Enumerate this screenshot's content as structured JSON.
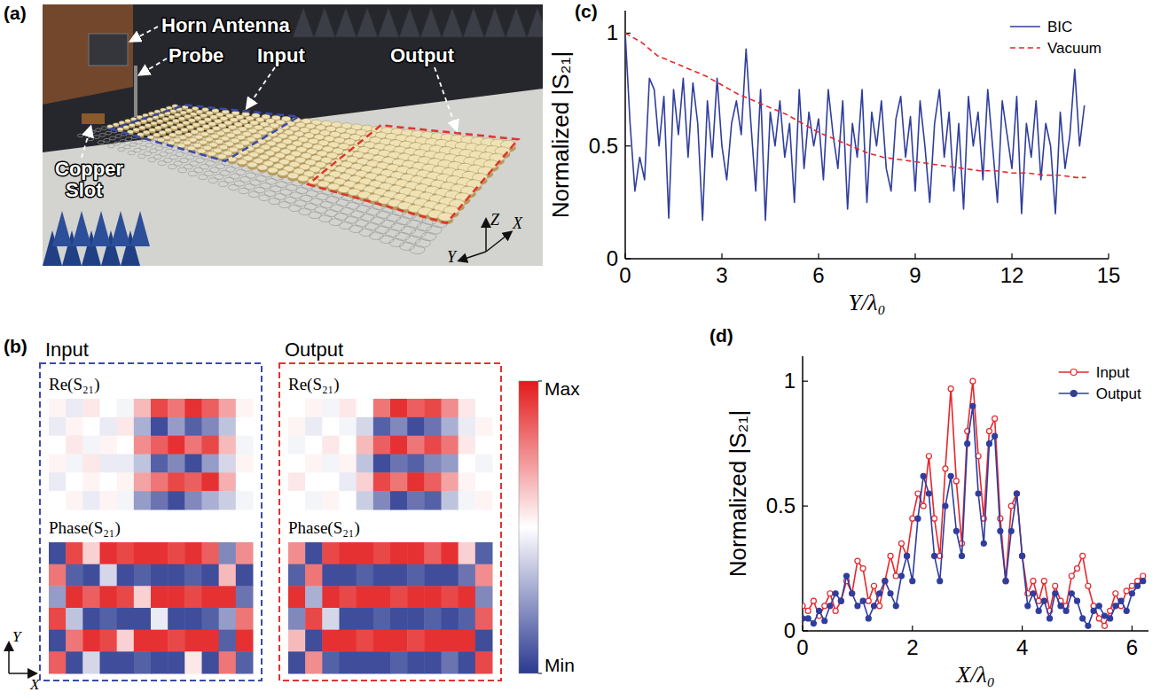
{
  "figure": {
    "panel_labels": [
      "(a)",
      "(b)",
      "(c)",
      "(d)"
    ],
    "photo": {
      "labels": {
        "horn_antenna": "Horn Antenna",
        "probe": "Probe",
        "input": "Input",
        "output": "Output",
        "copper_slot": "Copper Slot"
      },
      "axes": [
        "Z",
        "X",
        "Y"
      ]
    },
    "field_maps": {
      "row_labels": [
        "Re(S₂₁)",
        "Phase(S₂₁)"
      ],
      "axes": [
        "Y",
        "X"
      ],
      "colorbar": {
        "range": [
          -1,
          1
        ],
        "ticks": [
          {
            "value": 1,
            "label": "Max"
          },
          {
            "value": -1,
            "label": "Min"
          }
        ]
      },
      "panels": [
        {
          "title": "Input",
          "color": "#3b4ba6",
          "re": [
            [
              0.05,
              -0.1,
              0.1,
              0,
              -0.05,
              0.3,
              0.8,
              0.6,
              0.9,
              0.7,
              0.4,
              0.05
            ],
            [
              -0.1,
              0.05,
              0,
              -0.1,
              0.1,
              -0.4,
              -0.9,
              -0.5,
              -0.8,
              -0.6,
              -0.3,
              0
            ],
            [
              0,
              0.1,
              -0.05,
              0.05,
              0,
              0.5,
              0.7,
              0.9,
              0.6,
              0.8,
              0.3,
              -0.05
            ],
            [
              0.05,
              -0.05,
              0.1,
              -0.1,
              -0.1,
              -0.3,
              -0.8,
              -0.6,
              -0.9,
              -0.5,
              -0.2,
              0.05
            ],
            [
              -0.1,
              0,
              0.05,
              0,
              0.05,
              0.4,
              0.6,
              0.8,
              0.7,
              0.9,
              0.35,
              0
            ],
            [
              0,
              0.05,
              -0.1,
              0.05,
              -0.05,
              -0.5,
              -0.7,
              -0.9,
              -0.6,
              -0.4,
              -0.25,
              -0.05
            ]
          ],
          "phase": [
            [
              -0.9,
              0.8,
              0.2,
              0.9,
              0.8,
              0.9,
              0.9,
              0.8,
              0.9,
              0.7,
              -0.6,
              0.5
            ],
            [
              0.6,
              -0.8,
              -0.9,
              -0.2,
              -0.9,
              -0.8,
              -0.9,
              -0.9,
              -0.8,
              -0.9,
              0.3,
              -0.9
            ],
            [
              -0.5,
              0.9,
              0.7,
              0.9,
              0.8,
              0.2,
              0.9,
              0.9,
              0.8,
              0.9,
              0.9,
              -0.7
            ],
            [
              0.8,
              -0.3,
              -0.9,
              -0.8,
              -0.9,
              -0.9,
              -0.1,
              -0.9,
              -0.9,
              -0.8,
              -0.5,
              0.6
            ],
            [
              -0.9,
              0.6,
              0.9,
              0.8,
              0.2,
              0.9,
              0.9,
              0.8,
              0.9,
              0.9,
              -0.8,
              0.9
            ],
            [
              0.7,
              -0.9,
              -0.2,
              -0.9,
              -0.9,
              -0.8,
              -0.9,
              -0.9,
              0.1,
              -0.9,
              0.6,
              -0.8
            ]
          ]
        },
        {
          "title": "Output",
          "color": "#e0342f",
          "re": [
            [
              0,
              0.05,
              -0.05,
              0.1,
              0,
              0.6,
              0.9,
              0.7,
              0.8,
              0.5,
              0.1,
              0
            ],
            [
              0.05,
              -0.1,
              0,
              -0.05,
              -0.2,
              -0.8,
              -0.6,
              -0.9,
              -0.7,
              -0.4,
              -0.1,
              0.05
            ],
            [
              -0.05,
              0,
              0.1,
              0,
              0.3,
              0.7,
              0.9,
              0.6,
              0.8,
              0.6,
              0.1,
              0
            ],
            [
              0,
              0.05,
              -0.05,
              0.05,
              -0.3,
              -0.9,
              -0.7,
              -0.8,
              -0.6,
              -0.5,
              0,
              -0.05
            ],
            [
              0.1,
              0,
              0,
              -0.1,
              0.2,
              0.8,
              0.6,
              0.9,
              0.7,
              0.4,
              0.05,
              0
            ],
            [
              0,
              -0.05,
              0.05,
              0,
              -0.25,
              -0.6,
              -0.9,
              -0.7,
              -0.8,
              -0.3,
              -0.05,
              0.05
            ]
          ],
          "phase": [
            [
              0.5,
              -0.9,
              0.8,
              0.9,
              0.9,
              0.8,
              0.9,
              0.9,
              0.7,
              0.9,
              0.2,
              -0.8
            ],
            [
              -0.8,
              0.6,
              -0.9,
              -0.9,
              -0.8,
              -0.9,
              -0.9,
              -0.8,
              -0.9,
              -0.9,
              -0.7,
              0.5
            ],
            [
              0.9,
              -0.4,
              0.9,
              0.8,
              0.9,
              0.9,
              0.8,
              0.9,
              0.9,
              0.8,
              0.9,
              -0.6
            ],
            [
              -0.6,
              0.8,
              -0.2,
              -0.9,
              -0.9,
              -0.8,
              -0.9,
              -0.9,
              -0.8,
              -0.9,
              -0.8,
              0.7
            ],
            [
              0.3,
              -0.9,
              0.9,
              0.9,
              0.8,
              0.9,
              0.9,
              0.8,
              0.9,
              0.9,
              0.9,
              -0.9
            ],
            [
              -0.9,
              0.5,
              -0.8,
              -0.9,
              -0.9,
              -0.9,
              -0.8,
              -0.9,
              -0.9,
              -0.7,
              -0.9,
              0.8
            ]
          ]
        }
      ]
    }
  },
  "chart_data": [
    {
      "type": "line",
      "xlabel": "Y/λ₀",
      "ylabel": "Normalized |S₂₁|",
      "xlim": [
        0,
        15
      ],
      "xticks": [
        0,
        3,
        6,
        9,
        12,
        15
      ],
      "ylim": [
        0,
        1.1
      ],
      "yticks": [
        0,
        0.5,
        1
      ],
      "legend": "top-right",
      "series": [
        {
          "name": "BIC",
          "color": "#2f3e9e",
          "line_style": "solid",
          "x": [
            0,
            0.15,
            0.3,
            0.45,
            0.6,
            0.75,
            0.9,
            1.05,
            1.2,
            1.35,
            1.5,
            1.65,
            1.8,
            1.95,
            2.1,
            2.25,
            2.4,
            2.55,
            2.7,
            2.85,
            3,
            3.15,
            3.3,
            3.45,
            3.6,
            3.75,
            3.9,
            4.05,
            4.2,
            4.35,
            4.5,
            4.65,
            4.8,
            4.95,
            5.1,
            5.25,
            5.4,
            5.55,
            5.7,
            5.85,
            6,
            6.15,
            6.3,
            6.45,
            6.6,
            6.75,
            6.9,
            7.05,
            7.2,
            7.35,
            7.5,
            7.65,
            7.8,
            7.95,
            8.1,
            8.25,
            8.4,
            8.55,
            8.7,
            8.85,
            9,
            9.15,
            9.3,
            9.45,
            9.6,
            9.75,
            9.9,
            10.05,
            10.2,
            10.35,
            10.5,
            10.65,
            10.8,
            10.95,
            11.1,
            11.25,
            11.4,
            11.55,
            11.7,
            11.85,
            12,
            12.15,
            12.3,
            12.45,
            12.6,
            12.75,
            12.9,
            13.05,
            13.2,
            13.35,
            13.5,
            13.65,
            13.8,
            13.95,
            14.1,
            14.25
          ],
          "values": [
            1,
            0.6,
            0.3,
            0.45,
            0.35,
            0.8,
            0.75,
            0.5,
            0.72,
            0.18,
            0.75,
            0.55,
            0.8,
            0.45,
            0.78,
            0.6,
            0.17,
            0.7,
            0.45,
            0.8,
            0.5,
            0.35,
            0.6,
            0.7,
            0.55,
            0.93,
            0.6,
            0.3,
            0.75,
            0.17,
            0.65,
            0.5,
            0.7,
            0.45,
            0.6,
            0.25,
            0.75,
            0.4,
            0.65,
            0.5,
            0.62,
            0.35,
            0.75,
            0.55,
            0.4,
            0.7,
            0.22,
            0.6,
            0.45,
            0.75,
            0.25,
            0.65,
            0.5,
            0.7,
            0.4,
            0.3,
            0.62,
            0.72,
            0.45,
            0.63,
            0.3,
            0.7,
            0.5,
            0.25,
            0.6,
            0.75,
            0.45,
            0.65,
            0.3,
            0.6,
            0.22,
            0.72,
            0.5,
            0.65,
            0.35,
            0.75,
            0.5,
            0.25,
            0.7,
            0.55,
            0.4,
            0.72,
            0.2,
            0.6,
            0.45,
            0.7,
            0.35,
            0.6,
            0.5,
            0.2,
            0.65,
            0.4,
            0.55,
            0.84,
            0.5,
            0.68
          ]
        },
        {
          "name": "Vacuum",
          "color": "#e8262b",
          "line_style": "dashed",
          "x": [
            0,
            0.5,
            1,
            1.5,
            2,
            2.5,
            3,
            3.5,
            4,
            4.5,
            5,
            5.5,
            6,
            6.5,
            7,
            7.5,
            8,
            8.5,
            9,
            9.5,
            10,
            10.5,
            11,
            11.5,
            12,
            12.5,
            13,
            13.5,
            14,
            14.3
          ],
          "values": [
            1,
            0.96,
            0.9,
            0.87,
            0.84,
            0.81,
            0.77,
            0.73,
            0.7,
            0.67,
            0.64,
            0.6,
            0.56,
            0.53,
            0.5,
            0.47,
            0.45,
            0.44,
            0.43,
            0.42,
            0.41,
            0.4,
            0.39,
            0.39,
            0.38,
            0.38,
            0.37,
            0.37,
            0.36,
            0.36
          ]
        }
      ]
    },
    {
      "type": "line",
      "xlabel": "X/λ₀",
      "ylabel": "Normalized |S₂₁|",
      "xlim": [
        0,
        6.3
      ],
      "xticks": [
        0,
        2,
        4,
        6
      ],
      "ylim": [
        0,
        1.1
      ],
      "yticks": [
        0,
        0.5,
        1
      ],
      "legend": "top-right",
      "x": [
        0,
        0.1,
        0.2,
        0.3,
        0.4,
        0.5,
        0.6,
        0.7,
        0.8,
        0.9,
        1,
        1.1,
        1.2,
        1.3,
        1.4,
        1.5,
        1.6,
        1.7,
        1.8,
        1.9,
        2,
        2.1,
        2.2,
        2.3,
        2.4,
        2.5,
        2.6,
        2.7,
        2.8,
        2.9,
        3,
        3.1,
        3.2,
        3.3,
        3.4,
        3.5,
        3.6,
        3.7,
        3.8,
        3.9,
        4,
        4.1,
        4.2,
        4.3,
        4.4,
        4.5,
        4.6,
        4.7,
        4.8,
        4.9,
        5,
        5.1,
        5.2,
        5.3,
        5.4,
        5.5,
        5.6,
        5.7,
        5.8,
        5.9,
        6,
        6.1,
        6.2
      ],
      "series": [
        {
          "name": "Input",
          "color": "#e8262b",
          "marker": "open-circle",
          "line_style": "solid",
          "values": [
            0.1,
            0.08,
            0.12,
            0.06,
            0.1,
            0.15,
            0.08,
            0.12,
            0.2,
            0.15,
            0.28,
            0.25,
            0.12,
            0.18,
            0.1,
            0.2,
            0.3,
            0.22,
            0.35,
            0.3,
            0.45,
            0.55,
            0.5,
            0.7,
            0.45,
            0.3,
            0.65,
            0.97,
            0.6,
            0.35,
            0.8,
            1,
            0.7,
            0.45,
            0.8,
            0.85,
            0.45,
            0.2,
            0.5,
            0.55,
            0.3,
            0.15,
            0.2,
            0.12,
            0.2,
            0.08,
            0.18,
            0.12,
            0.1,
            0.22,
            0.25,
            0.3,
            0.18,
            0.1,
            0.05,
            0.02,
            0.08,
            0.15,
            0.1,
            0.16,
            0.18,
            0.2,
            0.22
          ]
        },
        {
          "name": "Output",
          "color": "#2f3e9e",
          "marker": "filled-circle",
          "line_style": "solid",
          "values": [
            0.05,
            0.05,
            0.03,
            0.08,
            0.04,
            0.1,
            0.15,
            0.12,
            0.22,
            0.15,
            0.1,
            0.12,
            0.05,
            0.1,
            0.15,
            0.2,
            0.15,
            0.1,
            0.22,
            0.3,
            0.2,
            0.45,
            0.62,
            0.55,
            0.3,
            0.2,
            0.5,
            0.62,
            0.4,
            0.3,
            0.75,
            0.9,
            0.55,
            0.35,
            0.75,
            0.78,
            0.4,
            0.2,
            0.4,
            0.55,
            0.3,
            0.1,
            0.15,
            0.08,
            0.12,
            0.05,
            0.15,
            0.1,
            0.08,
            0.15,
            0.12,
            0.05,
            0.02,
            0.08,
            0.1,
            0.06,
            0.05,
            0.1,
            0.12,
            0.08,
            0.15,
            0.18,
            0.2
          ]
        }
      ]
    }
  ]
}
